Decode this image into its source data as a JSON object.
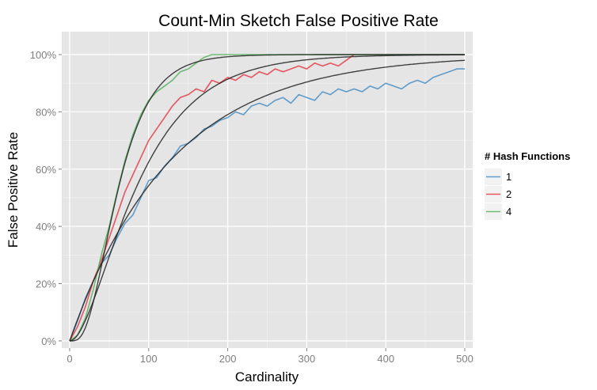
{
  "chart_data": {
    "type": "line",
    "title": "Count-Min Sketch False Positive Rate",
    "xlabel": "Cardinality",
    "ylabel": "False Positive Rate",
    "xlim": [
      -10,
      510
    ],
    "ylim": [
      -2.5,
      108
    ],
    "x_ticks": [
      0,
      100,
      200,
      300,
      400,
      500
    ],
    "x_tick_labels": [
      "0",
      "100",
      "200",
      "300",
      "400",
      "500"
    ],
    "y_ticks": [
      0,
      20,
      40,
      60,
      80,
      100
    ],
    "y_tick_labels": [
      "0%",
      "20%",
      "40%",
      "60%",
      "80%",
      "100%"
    ],
    "grid": true,
    "background": "#e5e5e5",
    "legend": {
      "title": "# Hash Functions",
      "placement": "right"
    },
    "series": [
      {
        "name": "1",
        "color": "#3f88c0",
        "x": [
          0,
          10,
          20,
          30,
          40,
          50,
          60,
          70,
          80,
          90,
          100,
          110,
          120,
          130,
          140,
          150,
          160,
          170,
          180,
          190,
          200,
          210,
          220,
          230,
          240,
          250,
          260,
          270,
          280,
          290,
          300,
          310,
          320,
          330,
          340,
          350,
          360,
          370,
          380,
          390,
          400,
          410,
          420,
          430,
          440,
          450,
          460,
          470,
          480,
          490,
          500
        ],
        "y": [
          0,
          7,
          15,
          21,
          27,
          30,
          36,
          41,
          44,
          50,
          56,
          57,
          61,
          64,
          68,
          69,
          71,
          74,
          75,
          77,
          78,
          80,
          79,
          82,
          83,
          82,
          84,
          85,
          83,
          86,
          85,
          84,
          87,
          86,
          88,
          87,
          88,
          87,
          89,
          88,
          90,
          89,
          88,
          90,
          91,
          90,
          92,
          93,
          94,
          95,
          95
        ]
      },
      {
        "name": "2",
        "color": "#e6303c",
        "x": [
          0,
          10,
          20,
          30,
          40,
          50,
          60,
          70,
          80,
          90,
          100,
          110,
          120,
          130,
          140,
          150,
          160,
          170,
          180,
          190,
          200,
          210,
          220,
          230,
          240,
          250,
          260,
          270,
          280,
          290,
          300,
          310,
          320,
          330,
          340,
          350,
          360
        ],
        "y": [
          0,
          5,
          12,
          21,
          28,
          36,
          44,
          52,
          58,
          64,
          70,
          74,
          78,
          82,
          85,
          86,
          88,
          87,
          91,
          90,
          92,
          91,
          93,
          92,
          94,
          93,
          95,
          94,
          95,
          96,
          95,
          97,
          96,
          97,
          96,
          98,
          100
        ]
      },
      {
        "name": "4",
        "color": "#4caf55",
        "x": [
          0,
          10,
          20,
          30,
          40,
          50,
          60,
          70,
          80,
          90,
          100,
          110,
          120,
          130,
          140,
          150,
          160,
          170,
          180,
          500
        ],
        "y": [
          0,
          2,
          8,
          18,
          30,
          40,
          52,
          63,
          72,
          79,
          84,
          87,
          89,
          91,
          94,
          95,
          97,
          99,
          100,
          100
        ]
      }
    ]
  }
}
